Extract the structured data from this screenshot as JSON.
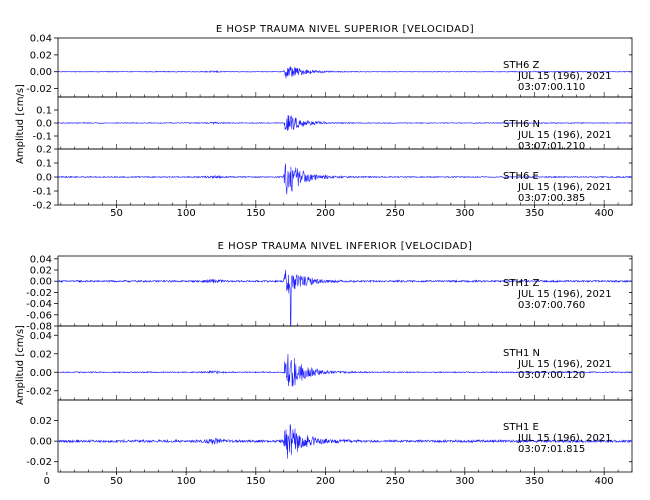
{
  "chart_data": [
    {
      "type": "line",
      "title": "E HOSP TRAUMA NIVEL SUPERIOR [VELOCIDAD]",
      "ylabel": "Amplitud [cm/s]",
      "xlim": [
        8,
        420
      ],
      "xticks": [
        50,
        100,
        150,
        200,
        250,
        300,
        350,
        400
      ],
      "grid": false,
      "line_color": "#1a1aff",
      "series": [
        {
          "name": "STH6 Z",
          "station": "STH6",
          "component": "Z",
          "date": "JUL 15 (196), 2021",
          "time": "03:07:00.110",
          "ylim": [
            -0.03,
            0.04
          ],
          "yticks": [
            0.04,
            0.02,
            0.0,
            -0.02
          ],
          "peak_time_s": 174,
          "peak_amplitude": 0.012,
          "noise_amplitude": 0.0004
        },
        {
          "name": "STH6 N",
          "station": "STH6",
          "component": "N",
          "date": "JUL 15 (196), 2021",
          "time": "03:07:01.210",
          "ylim": [
            -0.2,
            0.2
          ],
          "yticks": [
            0.1,
            0.0,
            -0.1
          ],
          "peak_time_s": 174,
          "peak_amplitude": 0.095,
          "noise_amplitude": 0.003
        },
        {
          "name": "STH6 E",
          "station": "STH6",
          "component": "E",
          "date": "JUL 15 (196), 2021",
          "time": "03:07:00.385",
          "ylim": [
            -0.2,
            0.2
          ],
          "yticks": [
            0.2,
            0.1,
            0.0,
            -0.1,
            -0.2
          ],
          "peak_time_s": 174,
          "peak_amplitude": 0.18,
          "noise_amplitude": 0.004
        }
      ]
    },
    {
      "type": "line",
      "title": "E HOSP TRAUMA NIVEL INFERIOR [VELOCIDAD]",
      "ylabel": "Amplitud [cm/s]",
      "xlim": [
        8,
        420
      ],
      "xticks": [
        0,
        50,
        100,
        150,
        200,
        250,
        300,
        350,
        400
      ],
      "grid": false,
      "line_color": "#1a1aff",
      "series": [
        {
          "name": "STH1 Z",
          "station": "STH1",
          "component": "Z",
          "date": "JUL 15 (196), 2021",
          "time": "03:07:00.760",
          "ylim": [
            -0.08,
            0.045
          ],
          "yticks": [
            0.04,
            0.02,
            0.0,
            -0.02,
            -0.04,
            -0.06,
            -0.08
          ],
          "peak_time_s": 174,
          "peak_amplitude": 0.035,
          "peak_negative": -0.08,
          "noise_amplitude": 0.0015
        },
        {
          "name": "STH1 N",
          "station": "STH1",
          "component": "N",
          "date": "JUL 15 (196), 2021",
          "time": "03:07:00.120",
          "ylim": [
            -0.03,
            0.05
          ],
          "yticks": [
            0.04,
            0.02,
            0.0,
            -0.02
          ],
          "peak_time_s": 174,
          "peak_amplitude": 0.033,
          "noise_amplitude": 0.0006
        },
        {
          "name": "STH1 E",
          "station": "STH1",
          "component": "E",
          "date": "JUL 15 (196), 2021",
          "time": "03:07:01.815",
          "ylim": [
            -0.03,
            0.04
          ],
          "yticks": [
            0.02,
            0.0,
            -0.02
          ],
          "peak_time_s": 174,
          "peak_amplitude": 0.025,
          "noise_amplitude": 0.0012
        }
      ]
    }
  ]
}
